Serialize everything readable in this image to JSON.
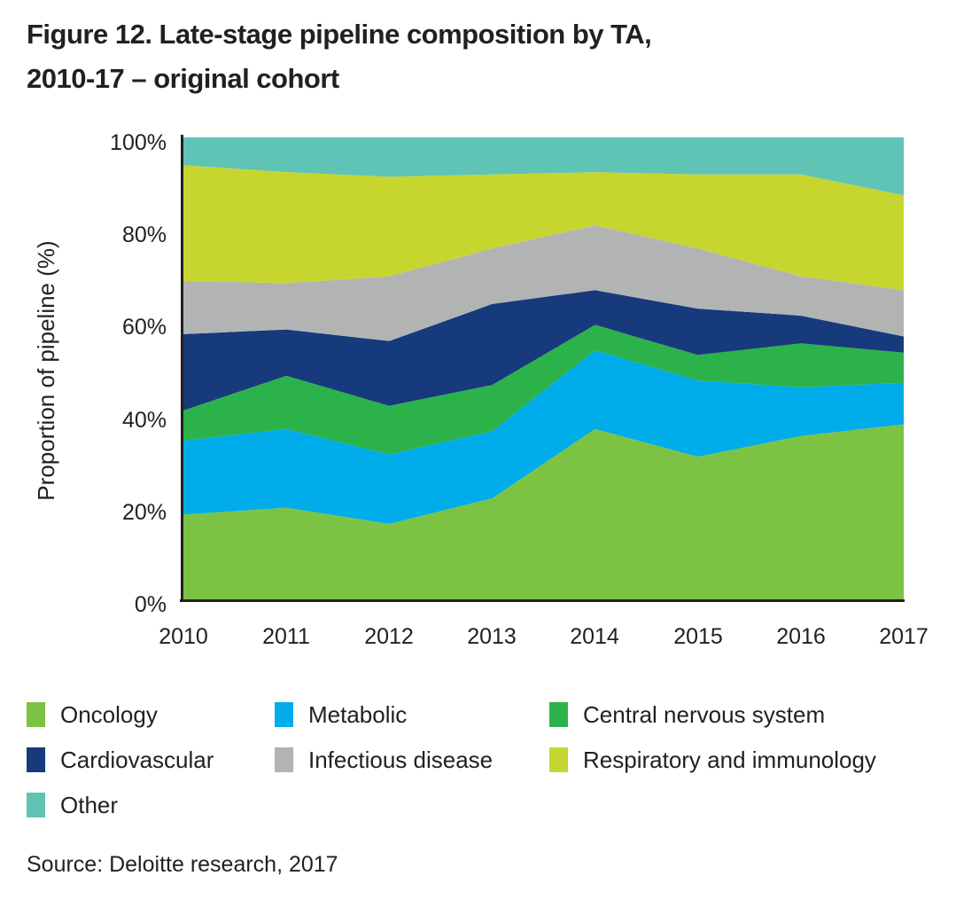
{
  "title": {
    "line1": "Figure 12. Late-stage pipeline composition by TA,",
    "line2": "2010-17 – original cohort"
  },
  "source": "Source: Deloitte research, 2017",
  "text_color": "#231f20",
  "axis_color": "#231f20",
  "chart_data": {
    "type": "area",
    "stacked": true,
    "title": "Late-stage pipeline composition by TA, 2010-17 – original cohort",
    "x": [
      "2010",
      "2011",
      "2012",
      "2013",
      "2014",
      "2015",
      "2016",
      "2017"
    ],
    "xlabel": "",
    "ylabel": "Proportion of pipeline (%)",
    "ylim": [
      0,
      100
    ],
    "y_ticks": [
      "0%",
      "20%",
      "40%",
      "60%",
      "80%",
      "100%"
    ],
    "grid": false,
    "legend_position": "bottom",
    "series": [
      {
        "name": "Oncology",
        "color": "#7cc344",
        "values": [
          18.5,
          20,
          16.5,
          22,
          37,
          31,
          35.5,
          38
        ]
      },
      {
        "name": "Metabolic",
        "color": "#00ace9",
        "values": [
          16,
          17,
          15,
          14.5,
          17,
          16.5,
          10.5,
          9
        ]
      },
      {
        "name": "Central nervous system",
        "color": "#2cb24a",
        "values": [
          6.5,
          11.5,
          10.5,
          10,
          5.5,
          5.5,
          9.5,
          6.5
        ]
      },
      {
        "name": "Cardiovascular",
        "color": "#173a7d",
        "values": [
          16.5,
          10,
          14,
          17.5,
          7.5,
          10,
          6,
          3.5
        ]
      },
      {
        "name": "Infectious disease",
        "color": "#b2b4b4",
        "values": [
          11.5,
          10,
          14,
          12,
          14,
          13,
          8.5,
          10
        ]
      },
      {
        "name": "Respiratory and immunology",
        "color": "#c7d52f",
        "values": [
          25,
          24,
          21.5,
          16,
          11.5,
          16,
          22,
          20.5
        ]
      },
      {
        "name": "Other",
        "color": "#5fc4b5",
        "values": [
          6,
          7.5,
          8.5,
          8,
          7.5,
          8,
          8,
          12.5
        ]
      }
    ]
  }
}
